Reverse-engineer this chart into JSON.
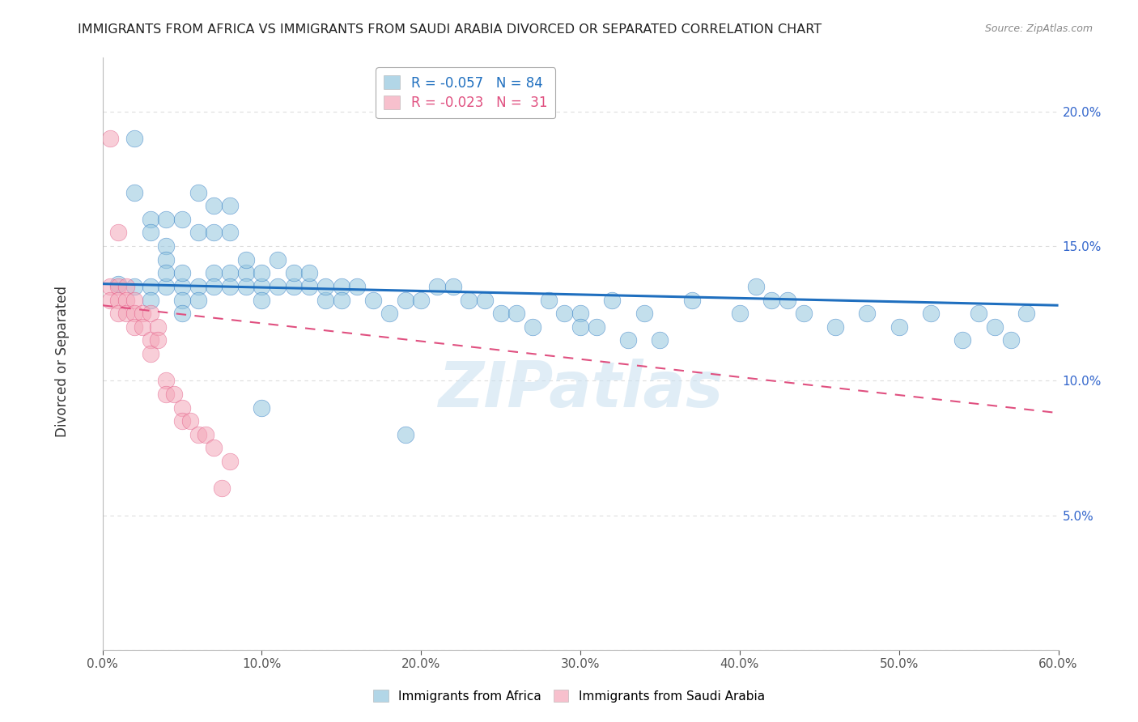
{
  "title": "IMMIGRANTS FROM AFRICA VS IMMIGRANTS FROM SAUDI ARABIA DIVORCED OR SEPARATED CORRELATION CHART",
  "source": "Source: ZipAtlas.com",
  "ylabel": "Divorced or Separated",
  "xlim": [
    0.0,
    0.6
  ],
  "ylim": [
    0.0,
    0.22
  ],
  "xticks": [
    0.0,
    0.1,
    0.2,
    0.3,
    0.4,
    0.5,
    0.6
  ],
  "xticklabels": [
    "0.0%",
    "10.0%",
    "20.0%",
    "30.0%",
    "40.0%",
    "50.0%",
    "60.0%"
  ],
  "yticks": [
    0.0,
    0.05,
    0.1,
    0.15,
    0.2
  ],
  "yticklabels": [
    "",
    "5.0%",
    "10.0%",
    "15.0%",
    "20.0%"
  ],
  "legend_blue_r": "-0.057",
  "legend_blue_n": "84",
  "legend_pink_r": "-0.023",
  "legend_pink_n": "31",
  "blue_color": "#92c5de",
  "pink_color": "#f4a6b8",
  "blue_line_color": "#1f6fbf",
  "pink_line_color": "#e05080",
  "blue_scatter_x": [
    0.01,
    0.02,
    0.02,
    0.02,
    0.03,
    0.03,
    0.03,
    0.03,
    0.04,
    0.04,
    0.04,
    0.04,
    0.04,
    0.05,
    0.05,
    0.05,
    0.05,
    0.05,
    0.06,
    0.06,
    0.06,
    0.06,
    0.07,
    0.07,
    0.07,
    0.07,
    0.08,
    0.08,
    0.08,
    0.08,
    0.09,
    0.09,
    0.09,
    0.1,
    0.1,
    0.1,
    0.11,
    0.11,
    0.12,
    0.12,
    0.13,
    0.13,
    0.14,
    0.14,
    0.15,
    0.15,
    0.16,
    0.17,
    0.18,
    0.19,
    0.2,
    0.21,
    0.22,
    0.23,
    0.24,
    0.25,
    0.26,
    0.27,
    0.28,
    0.29,
    0.3,
    0.31,
    0.33,
    0.35,
    0.37,
    0.4,
    0.42,
    0.44,
    0.46,
    0.48,
    0.5,
    0.52,
    0.54,
    0.55,
    0.56,
    0.57,
    0.58,
    0.41,
    0.43,
    0.3,
    0.1,
    0.19,
    0.32,
    0.34
  ],
  "blue_scatter_y": [
    0.136,
    0.135,
    0.19,
    0.17,
    0.135,
    0.13,
    0.16,
    0.155,
    0.135,
    0.15,
    0.145,
    0.14,
    0.16,
    0.135,
    0.13,
    0.125,
    0.14,
    0.16,
    0.135,
    0.13,
    0.17,
    0.155,
    0.14,
    0.135,
    0.155,
    0.165,
    0.14,
    0.135,
    0.155,
    0.165,
    0.14,
    0.145,
    0.135,
    0.135,
    0.14,
    0.13,
    0.135,
    0.145,
    0.135,
    0.14,
    0.135,
    0.14,
    0.13,
    0.135,
    0.135,
    0.13,
    0.135,
    0.13,
    0.125,
    0.13,
    0.13,
    0.135,
    0.135,
    0.13,
    0.13,
    0.125,
    0.125,
    0.12,
    0.13,
    0.125,
    0.125,
    0.12,
    0.115,
    0.115,
    0.13,
    0.125,
    0.13,
    0.125,
    0.12,
    0.125,
    0.12,
    0.125,
    0.115,
    0.125,
    0.12,
    0.115,
    0.125,
    0.135,
    0.13,
    0.12,
    0.09,
    0.08,
    0.13,
    0.125
  ],
  "pink_scatter_x": [
    0.005,
    0.005,
    0.005,
    0.01,
    0.01,
    0.01,
    0.01,
    0.015,
    0.015,
    0.015,
    0.02,
    0.02,
    0.02,
    0.025,
    0.025,
    0.03,
    0.03,
    0.03,
    0.035,
    0.035,
    0.04,
    0.04,
    0.045,
    0.05,
    0.05,
    0.055,
    0.06,
    0.065,
    0.07,
    0.075,
    0.08
  ],
  "pink_scatter_y": [
    0.19,
    0.135,
    0.13,
    0.155,
    0.135,
    0.13,
    0.125,
    0.135,
    0.13,
    0.125,
    0.13,
    0.125,
    0.12,
    0.125,
    0.12,
    0.125,
    0.115,
    0.11,
    0.12,
    0.115,
    0.1,
    0.095,
    0.095,
    0.09,
    0.085,
    0.085,
    0.08,
    0.08,
    0.075,
    0.06,
    0.07
  ],
  "watermark": "ZIPatlas",
  "background_color": "#ffffff",
  "grid_color": "#dddddd",
  "blue_trend_start_y": 0.136,
  "blue_trend_end_y": 0.128,
  "pink_trend_start_y": 0.128,
  "pink_trend_end_y": 0.088
}
